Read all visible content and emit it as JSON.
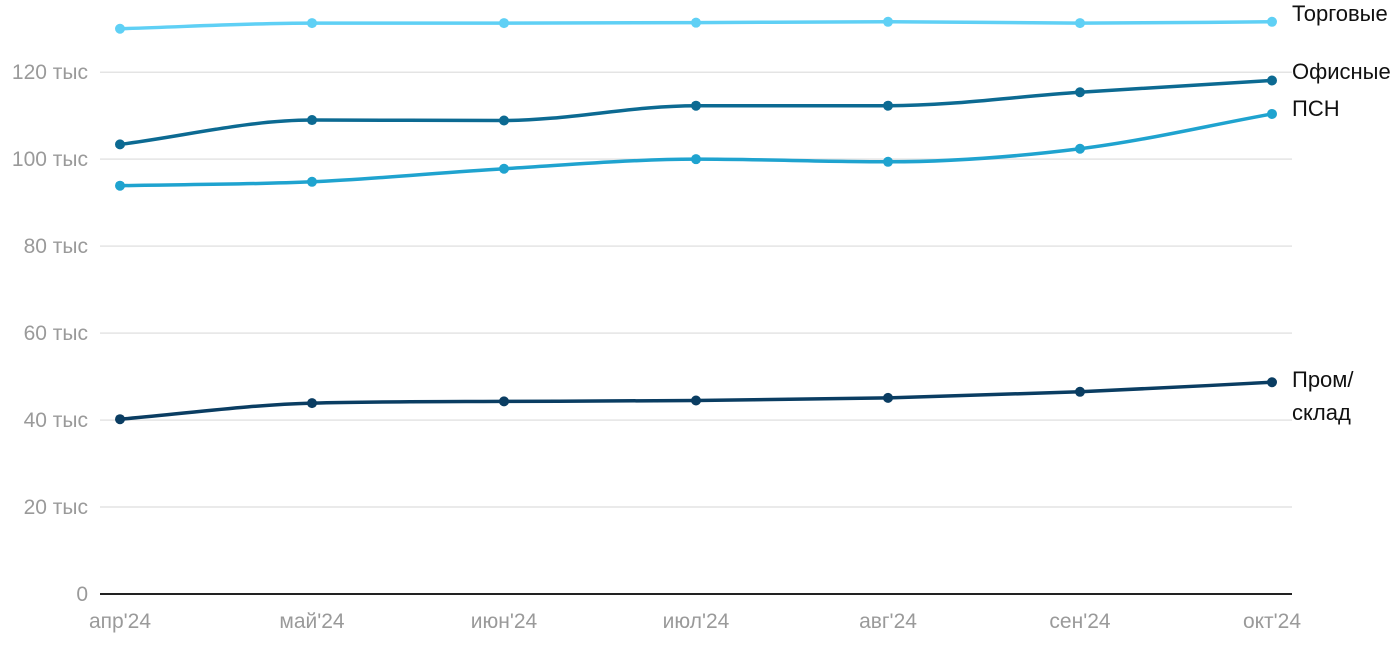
{
  "chart_data": {
    "type": "line",
    "title": "",
    "xlabel": "",
    "ylabel": "",
    "categories": [
      "апр'24",
      "май'24",
      "июн'24",
      "июл'24",
      "авг'24",
      "сен'24",
      "окт'24"
    ],
    "ylim": [
      0,
      135000
    ],
    "y_ticks": [
      0,
      20000,
      40000,
      60000,
      80000,
      100000,
      120000
    ],
    "y_tick_labels": [
      "0",
      "20 тыс",
      "40 тыс",
      "60 тыс",
      "80 тыс",
      "100 тыс",
      "120 тыс"
    ],
    "grid": true,
    "legend": "end-of-line labels",
    "series": [
      {
        "name": "Торговые",
        "color": "#5fd0f5",
        "values": [
          130000,
          131300,
          131300,
          131400,
          131600,
          131300,
          131600
        ]
      },
      {
        "name": "Офисные",
        "color": "#0c6a92",
        "values": [
          103400,
          109000,
          108900,
          112300,
          112300,
          115400,
          118100
        ]
      },
      {
        "name": "ПСН",
        "color": "#1fa3cf",
        "values": [
          93900,
          94800,
          97800,
          100000,
          99400,
          102400,
          110400
        ]
      },
      {
        "name": "Пром/склад",
        "label_lines": [
          "Пром/",
          "склад"
        ],
        "color": "#0a3d62",
        "values": [
          40200,
          43900,
          44300,
          44500,
          45100,
          46500,
          48700
        ]
      }
    ]
  }
}
